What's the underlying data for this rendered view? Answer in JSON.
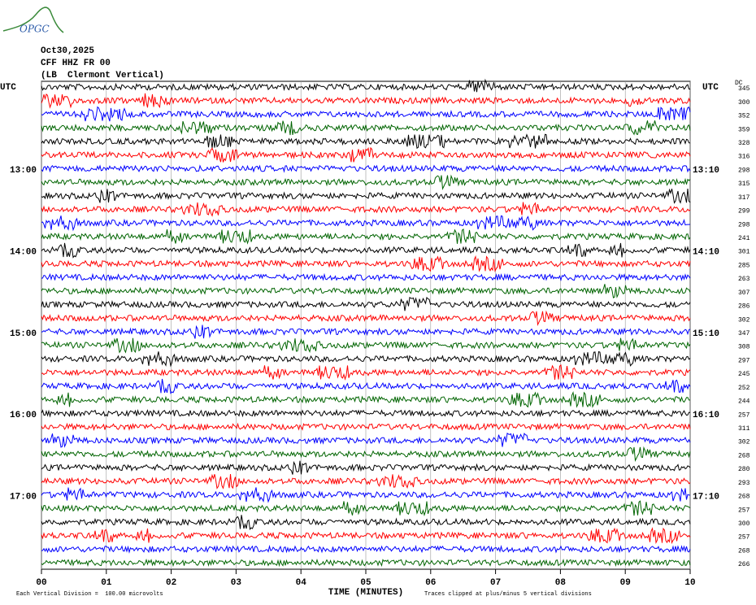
{
  "chart_data": {
    "type": "helicorder",
    "logo": "OPGC",
    "date": "Oct30,2025",
    "station": "CFF HHZ FR 00",
    "location": "(LB  Clermont Vertical)",
    "left_header": "UTC",
    "right_header": "UTC",
    "offset_header": "DC",
    "left_labels": [
      null,
      null,
      null,
      null,
      null,
      null,
      "13:00",
      null,
      null,
      null,
      null,
      null,
      "14:00",
      null,
      null,
      null,
      null,
      null,
      "15:00",
      null,
      null,
      null,
      null,
      null,
      "16:00",
      null,
      null,
      null,
      null,
      null,
      "17:00",
      null,
      null,
      null,
      null,
      null
    ],
    "right_labels": [
      null,
      null,
      null,
      null,
      null,
      null,
      "13:10",
      null,
      null,
      null,
      null,
      null,
      "14:10",
      null,
      null,
      null,
      null,
      null,
      "15:10",
      null,
      null,
      null,
      null,
      null,
      "16:10",
      null,
      null,
      null,
      null,
      null,
      "17:10",
      null,
      null,
      null,
      null,
      null
    ],
    "offsets": [
      345,
      300,
      352,
      359,
      328,
      316,
      298,
      315,
      317,
      299,
      298,
      241,
      301,
      285,
      263,
      307,
      286,
      302,
      347,
      308,
      297,
      245,
      252,
      244,
      257,
      311,
      302,
      268,
      280,
      293,
      268,
      257,
      300,
      257,
      268,
      266
    ],
    "colors": [
      "#000000",
      "#ff0000",
      "#0000ff",
      "#006400"
    ],
    "xlabel": "TIME (MINUTES)",
    "xlim": [
      0,
      10
    ],
    "xticks": [
      {
        "value": 0,
        "label": "00"
      },
      {
        "value": 1,
        "label": "01"
      },
      {
        "value": 2,
        "label": "02"
      },
      {
        "value": 3,
        "label": "03"
      },
      {
        "value": 4,
        "label": "04"
      },
      {
        "value": 5,
        "label": "05"
      },
      {
        "value": 6,
        "label": "06"
      },
      {
        "value": 7,
        "label": "07"
      },
      {
        "value": 8,
        "label": "08"
      },
      {
        "value": 9,
        "label": "09"
      },
      {
        "value": 10,
        "label": "10"
      }
    ],
    "grid": true,
    "footer_left": "Each Vertical Division =  100.00 microvolts",
    "footer_right": "Traces clipped at plus/minus 5 vertical divisions"
  }
}
